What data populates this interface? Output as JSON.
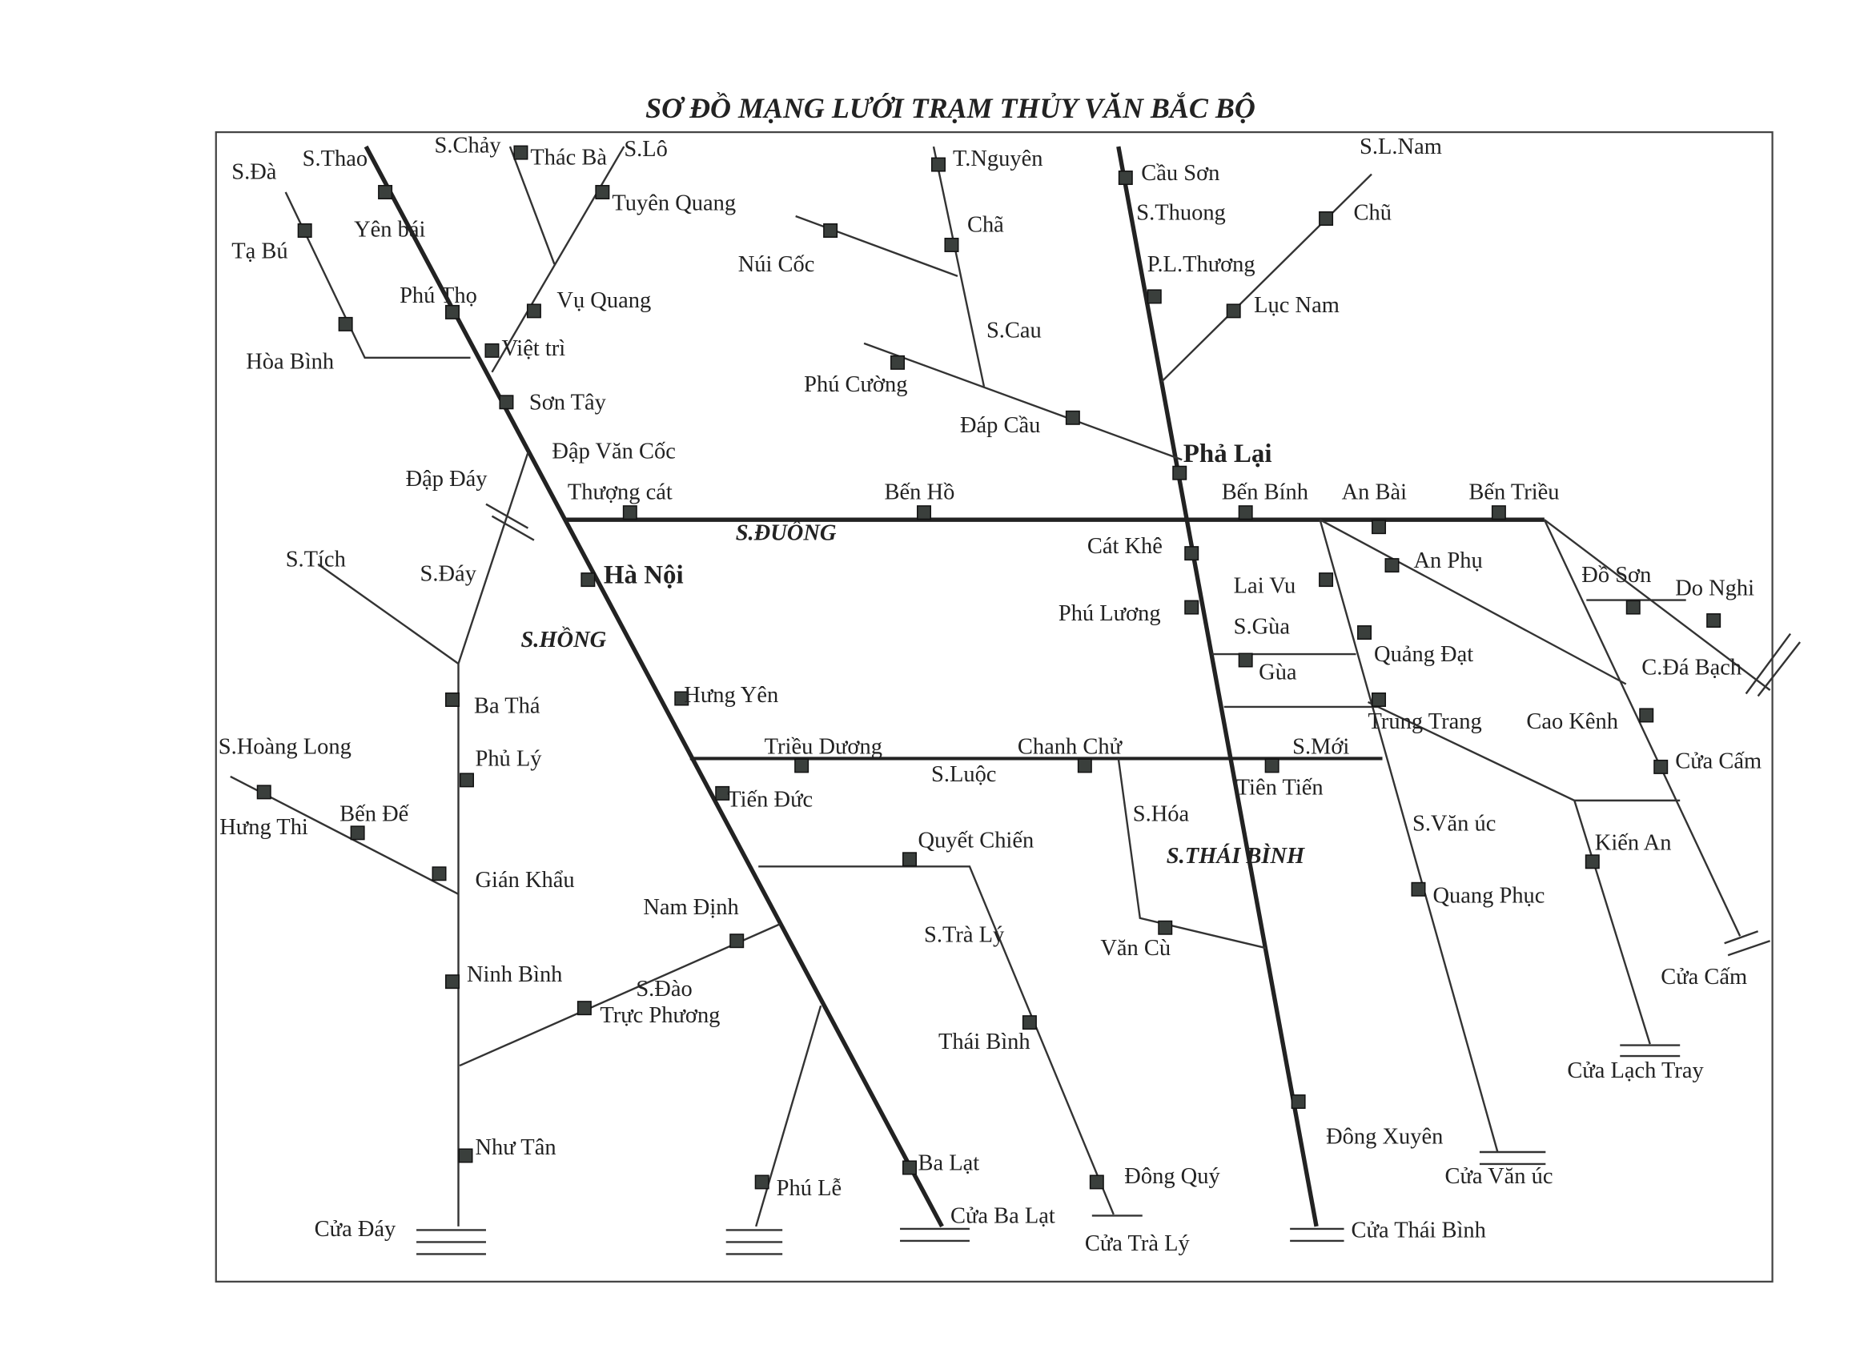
{
  "title": "SƠ ĐỒ MẠNG LƯỚI TRẠM THỦY VĂN BẮC BỘ",
  "stations": [
    {
      "name": "Yên bái"
    },
    {
      "name": "Tạ Bú"
    },
    {
      "name": "Hòa Bình"
    },
    {
      "name": "Thác Bà"
    },
    {
      "name": "Tuyên Quang"
    },
    {
      "name": "Phú Thọ"
    },
    {
      "name": "Vụ Quang"
    },
    {
      "name": "Việt trì"
    },
    {
      "name": "Sơn Tây"
    },
    {
      "name": "T.Nguyên"
    },
    {
      "name": "Chã"
    },
    {
      "name": "Núi Cốc"
    },
    {
      "name": "Phú Cường"
    },
    {
      "name": "Đáp Cầu"
    },
    {
      "name": "Cầu Sơn"
    },
    {
      "name": "P.L.Thương"
    },
    {
      "name": "Chũ"
    },
    {
      "name": "Lục Nam"
    },
    {
      "name": "Phả Lại",
      "major": true
    },
    {
      "name": "Thượng cát"
    },
    {
      "name": "Bến Hồ"
    },
    {
      "name": "Bến Bính"
    },
    {
      "name": "An Bài"
    },
    {
      "name": "Bến Triều"
    },
    {
      "name": "Hà Nội",
      "major": true
    },
    {
      "name": "Cát Khê"
    },
    {
      "name": "Lai Vu"
    },
    {
      "name": "An Phụ"
    },
    {
      "name": "Phú Lương"
    },
    {
      "name": "Quảng Đạt"
    },
    {
      "name": "Gùa"
    },
    {
      "name": "Đồ Sơn"
    },
    {
      "name": "Do Nghi"
    },
    {
      "name": "Ba Thá"
    },
    {
      "name": "Hưng Yên"
    },
    {
      "name": "Trung Trang"
    },
    {
      "name": "Cao Kênh"
    },
    {
      "name": "Phủ Lý"
    },
    {
      "name": "Triều Dương"
    },
    {
      "name": "Chanh Chử"
    },
    {
      "name": "Tiên Tiến"
    },
    {
      "name": "Cửa Cấm"
    },
    {
      "name": "Hưng Thi"
    },
    {
      "name": "Bến Đế"
    },
    {
      "name": "Tiến Đức"
    },
    {
      "name": "Quyết Chiến"
    },
    {
      "name": "Kiến An"
    },
    {
      "name": "Gián Khẩu"
    },
    {
      "name": "Quang Phục"
    },
    {
      "name": "Nam Định"
    },
    {
      "name": "Văn Cù"
    },
    {
      "name": "Ninh Bình"
    },
    {
      "name": "Trực Phương"
    },
    {
      "name": "Thái Bình"
    },
    {
      "name": "Như Tân"
    },
    {
      "name": "Đông Xuyên"
    },
    {
      "name": "Ba Lạt"
    },
    {
      "name": "Phú Lễ"
    },
    {
      "name": "Đông Quý"
    }
  ],
  "estuaries": [
    "Cửa Đáy",
    "Cửa Ba Lạt",
    "Cửa Trà Lý",
    "Cửa Thái Bình",
    "Cửa Văn úc",
    "Cửa Lạch Tray",
    "Cửa Cấm",
    "C.Đá Bạch"
  ],
  "rivers": [
    "S.Đà",
    "S.Thao",
    "S.Chảy",
    "S.Lô",
    "S.Cau",
    "S.Thuong",
    "S.L.Nam",
    "Đập Văn Cốc",
    "Đập Đáy",
    "S.Tích",
    "S.Đáy",
    "S.Hoàng Long",
    "S.Gùa",
    "S.Luộc",
    "S.Mới",
    "S.Hóa",
    "S.Văn úc",
    "S.Trà Lý",
    "S.Đào"
  ],
  "main_rivers": [
    "S.ĐUỐNG",
    "S.HỒNG",
    "S.THÁI BÌNH"
  ]
}
